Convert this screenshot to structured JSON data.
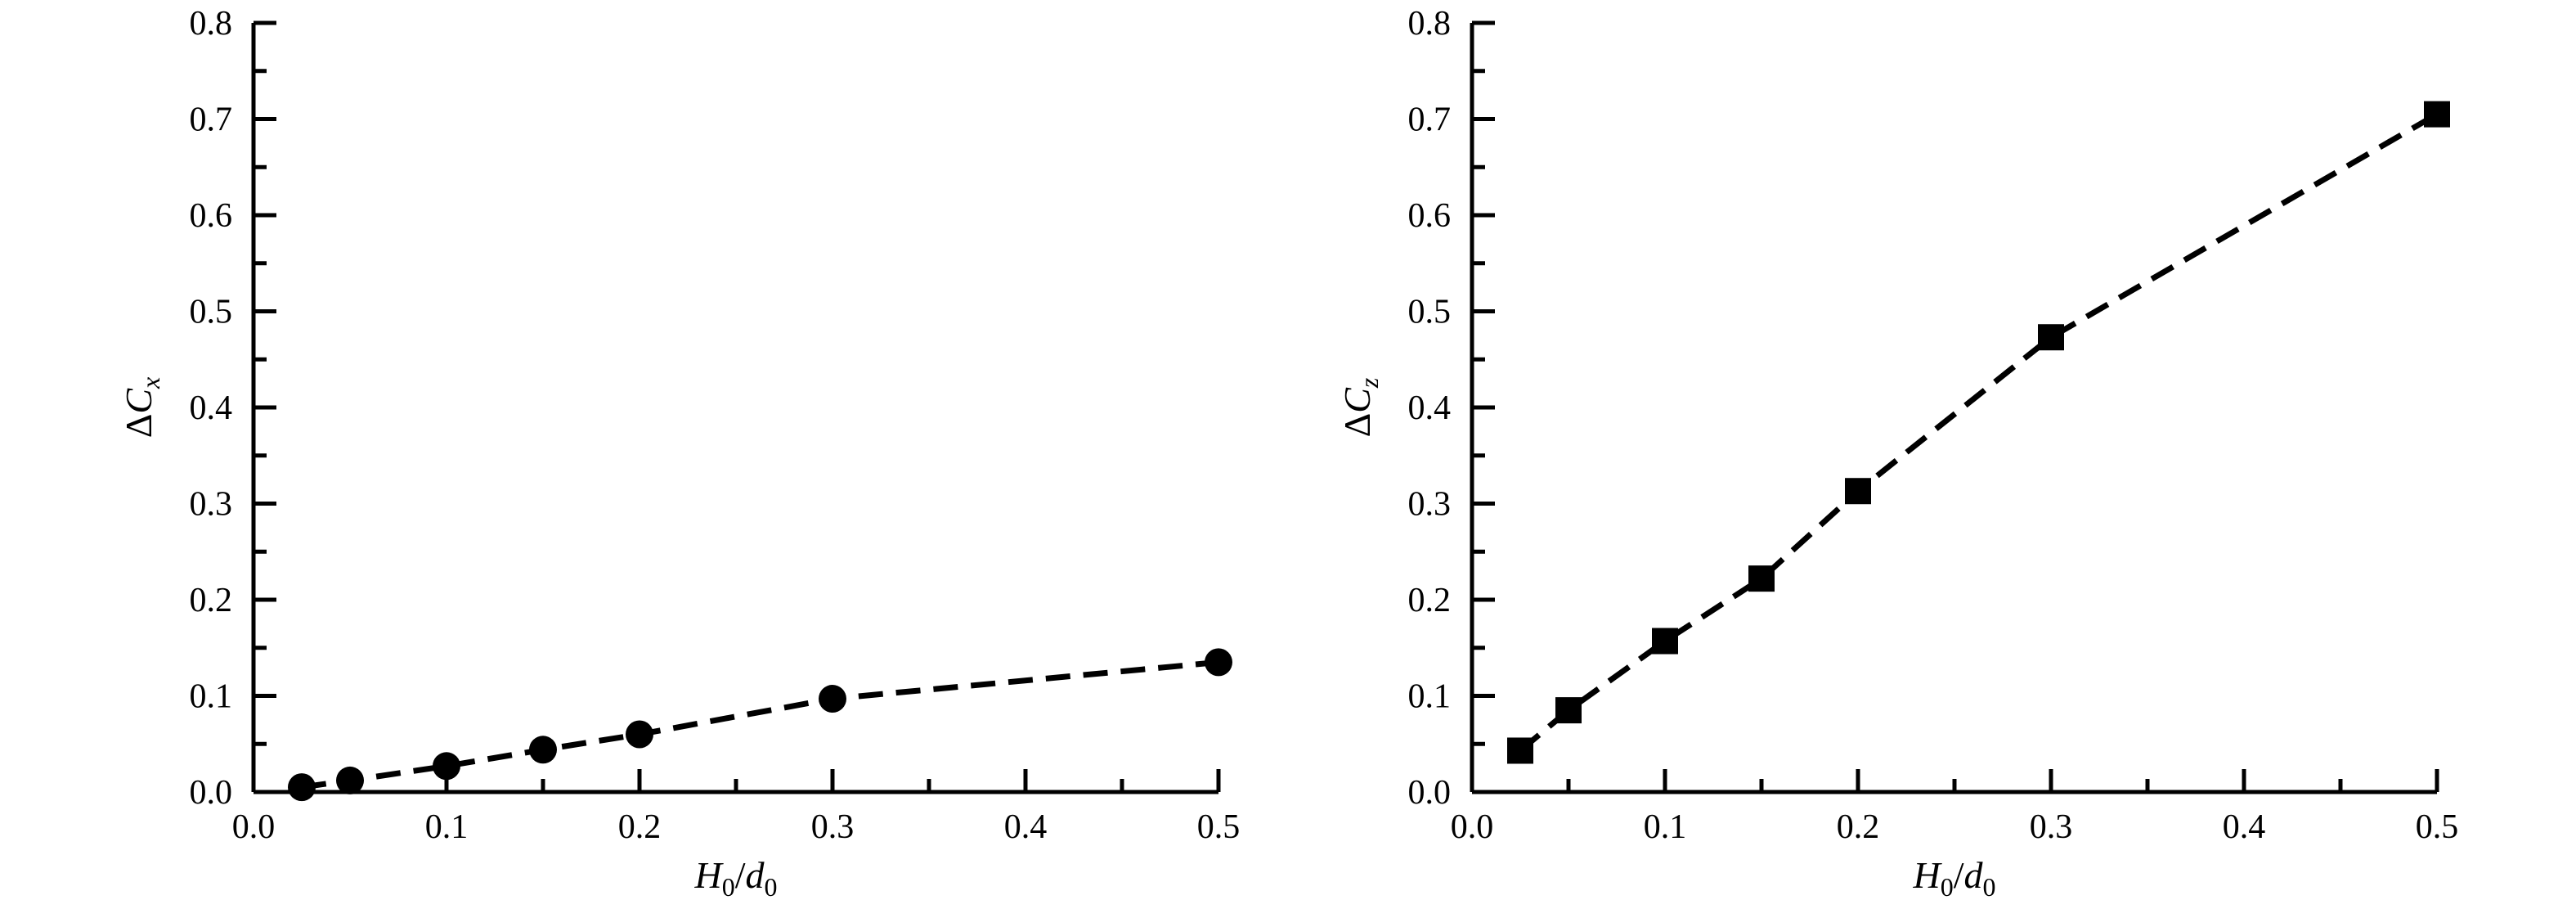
{
  "chart_data": [
    {
      "type": "scatter",
      "marker": "circle",
      "x": [
        0.025,
        0.05,
        0.1,
        0.15,
        0.2,
        0.3,
        0.5
      ],
      "y": [
        0.005,
        0.012,
        0.027,
        0.044,
        0.06,
        0.097,
        0.135
      ],
      "fit_line": "dashed",
      "xlim": [
        0.0,
        0.5
      ],
      "ylim": [
        0.0,
        0.8
      ],
      "xticks": [
        "0.0",
        "0.1",
        "0.2",
        "0.3",
        "0.4",
        "0.5"
      ],
      "yticks": [
        "0.0",
        "0.1",
        "0.2",
        "0.3",
        "0.4",
        "0.5",
        "0.6",
        "0.7",
        "0.8"
      ],
      "xlabel": {
        "main": "H",
        "sub": "0",
        "sep": "/",
        "main2": "d",
        "sub2": "0"
      },
      "ylabel": {
        "prefix": "Δ",
        "main": "C",
        "sub": "x"
      },
      "grid": false
    },
    {
      "type": "scatter",
      "marker": "square",
      "x": [
        0.025,
        0.05,
        0.1,
        0.15,
        0.2,
        0.3,
        0.5
      ],
      "y": [
        0.043,
        0.085,
        0.157,
        0.222,
        0.313,
        0.473,
        0.705
      ],
      "fit_line": "dashed",
      "xlim": [
        0.0,
        0.5
      ],
      "ylim": [
        0.0,
        0.8
      ],
      "xticks": [
        "0.0",
        "0.1",
        "0.2",
        "0.3",
        "0.4",
        "0.5"
      ],
      "yticks": [
        "0.0",
        "0.1",
        "0.2",
        "0.3",
        "0.4",
        "0.5",
        "0.6",
        "0.7",
        "0.8"
      ],
      "xlabel": {
        "main": "H",
        "sub": "0",
        "sep": "/",
        "main2": "d",
        "sub2": "0"
      },
      "ylabel": {
        "prefix": "Δ",
        "main": "C",
        "sub": "z"
      },
      "grid": false
    }
  ]
}
